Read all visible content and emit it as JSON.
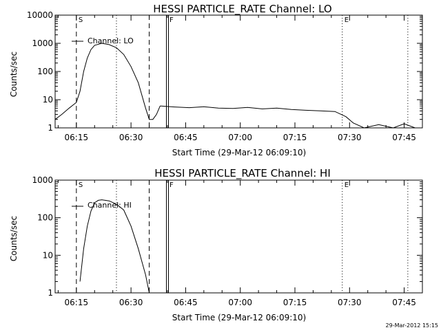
{
  "footer_timestamp": "29-Mar-2012 15:15",
  "chart_data": [
    {
      "type": "line",
      "title": "HESSI PARTICLE_RATE Channel: LO",
      "xlabel": "Start Time (29-Mar-12 06:09:10)",
      "ylabel": "Counts/sec",
      "y_scale": "log",
      "ylim": [
        1,
        10000
      ],
      "y_ticks": [
        1,
        10,
        100,
        1000,
        10000
      ],
      "y_tick_labels": [
        "1",
        "10",
        "100",
        "1000",
        "10000"
      ],
      "xlim": [
        "06:09:10",
        "07:50:00"
      ],
      "x_ticks": [
        "06:15",
        "06:30",
        "06:45",
        "07:00",
        "07:15",
        "07:30",
        "07:45"
      ],
      "legend": "Channel: LO",
      "markers": [
        {
          "label": "S",
          "time": "06:15",
          "style": "dashed"
        },
        {
          "label": "",
          "time": "06:26",
          "style": "dotted"
        },
        {
          "label": "",
          "time": "06:35",
          "style": "dashed"
        },
        {
          "label": "F",
          "time": "06:40",
          "style": "double"
        },
        {
          "label": "E",
          "time": "07:28",
          "style": "dotted"
        },
        {
          "label": "",
          "time": "07:46",
          "style": "dotted"
        }
      ],
      "series": [
        {
          "x": [
            "06:09:10",
            "06:11",
            "06:13",
            "06:15",
            "06:16",
            "06:17",
            "06:18",
            "06:19",
            "06:20",
            "06:22",
            "06:24",
            "06:26",
            "06:28",
            "06:30",
            "06:32",
            "06:34",
            "06:35",
            "06:36",
            "06:37",
            "06:38"
          ],
          "y": [
            2,
            3,
            5,
            8,
            20,
            100,
            300,
            600,
            850,
            1000,
            900,
            700,
            400,
            150,
            40,
            5,
            2,
            2,
            3,
            6
          ]
        },
        {
          "x": [
            "06:38",
            "06:42",
            "06:46",
            "06:50",
            "06:54",
            "06:58",
            "07:02",
            "07:06",
            "07:10",
            "07:14",
            "07:18",
            "07:22",
            "07:26",
            "07:29",
            "07:31",
            "07:34",
            "07:38",
            "07:42",
            "07:45",
            "07:48"
          ],
          "y": [
            6,
            5.5,
            5.2,
            5.6,
            5,
            4.9,
            5.3,
            4.7,
            5,
            4.5,
            4.2,
            4,
            3.8,
            2.5,
            1.5,
            1,
            1.3,
            1,
            1.4,
            1
          ]
        }
      ]
    },
    {
      "type": "line",
      "title": "HESSI PARTICLE_RATE Channel: HI",
      "xlabel": "Start Time (29-Mar-12 06:09:10)",
      "ylabel": "Counts/sec",
      "y_scale": "log",
      "ylim": [
        1,
        1000
      ],
      "y_ticks": [
        1,
        10,
        100,
        1000
      ],
      "y_tick_labels": [
        "1",
        "10",
        "100",
        "1000"
      ],
      "xlim": [
        "06:09:10",
        "07:50:00"
      ],
      "x_ticks": [
        "06:15",
        "06:30",
        "06:45",
        "07:00",
        "07:15",
        "07:30",
        "07:45"
      ],
      "legend": "Channel: HI",
      "markers": [
        {
          "label": "S",
          "time": "06:15",
          "style": "dashed"
        },
        {
          "label": "",
          "time": "06:26",
          "style": "dotted"
        },
        {
          "label": "",
          "time": "06:35",
          "style": "dashed"
        },
        {
          "label": "F",
          "time": "06:40",
          "style": "double"
        },
        {
          "label": "E",
          "time": "07:28",
          "style": "dotted"
        },
        {
          "label": "",
          "time": "07:46",
          "style": "dotted"
        }
      ],
      "series": [
        {
          "x": [
            "06:16",
            "06:17",
            "06:18",
            "06:19",
            "06:20",
            "06:21",
            "06:22",
            "06:24",
            "06:26",
            "06:28",
            "06:30",
            "06:32",
            "06:34",
            "06:35"
          ],
          "y": [
            2,
            15,
            60,
            150,
            250,
            290,
            300,
            280,
            230,
            160,
            60,
            15,
            3,
            1
          ]
        }
      ]
    }
  ]
}
